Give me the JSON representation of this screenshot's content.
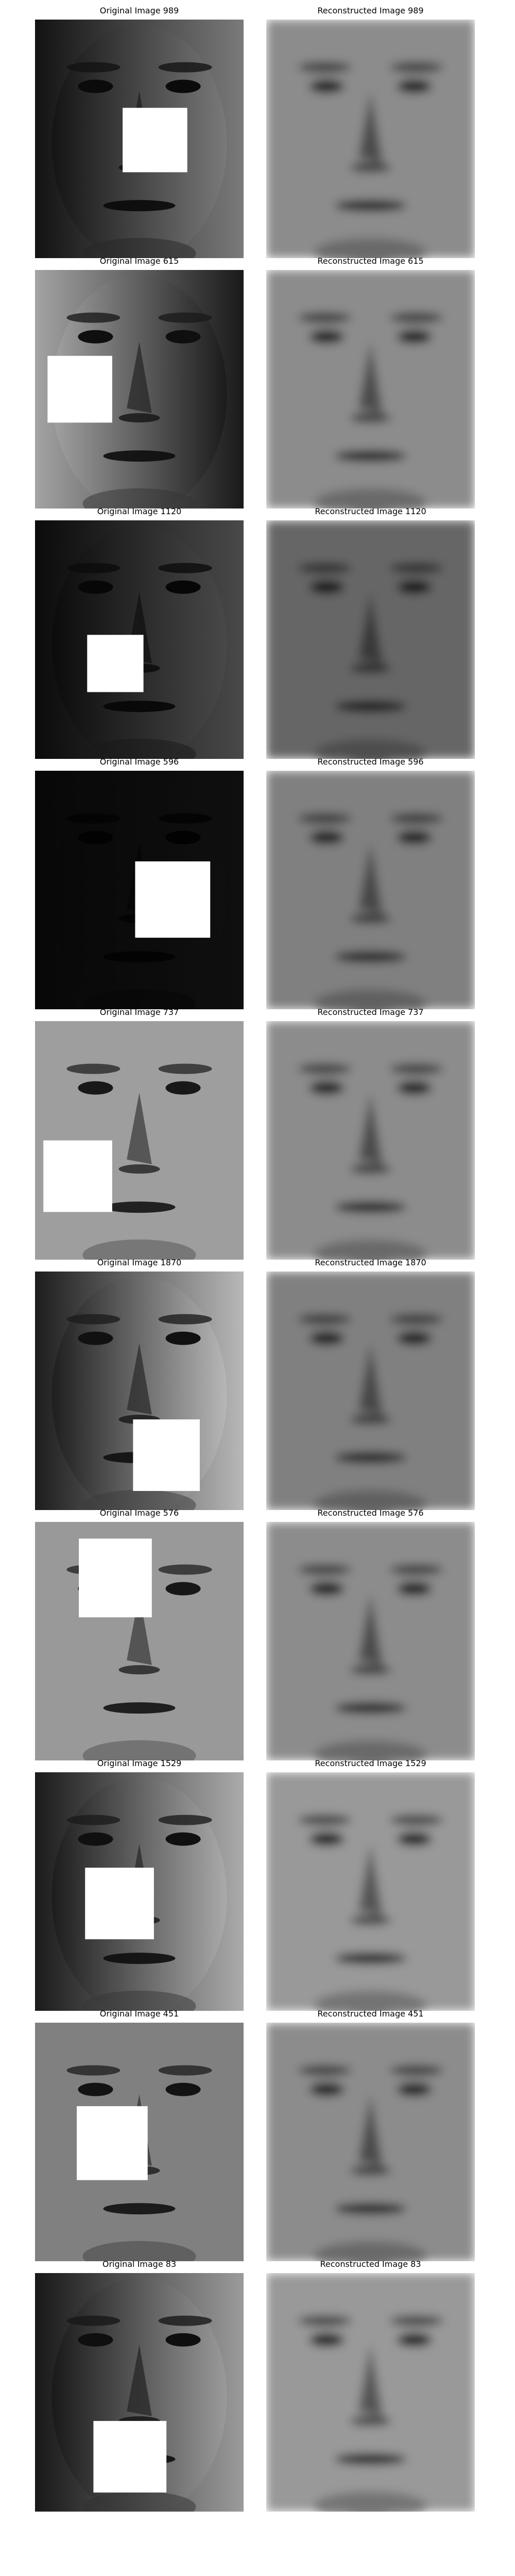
{
  "colors": {
    "background": "#ffffff",
    "occlusion": "#ffffff",
    "caption_text": "#000000"
  },
  "rows": [
    {
      "original_title": "Original Image 989",
      "reconstructed_title": "Reconstructed Image 989",
      "original_subject": "face-photo-989",
      "reconstructed_subject": "face-reconstruction-989",
      "lighting_side": "left-dark",
      "original_brightness": 0.3,
      "reconstructed_brightness": 0.55,
      "occlusion_box_fraction": [
        0.42,
        0.37,
        0.31,
        0.27
      ]
    },
    {
      "original_title": "Original Image 615",
      "reconstructed_title": "Reconstructed Image 615",
      "original_subject": "face-photo-615",
      "reconstructed_subject": "face-reconstruction-615",
      "lighting_side": "right-dark",
      "original_brightness": 0.4,
      "reconstructed_brightness": 0.55,
      "occlusion_box_fraction": [
        0.06,
        0.36,
        0.31,
        0.28
      ]
    },
    {
      "original_title": "Original Image 1120",
      "reconstructed_title": "Reconstructed Image 1120",
      "original_subject": "face-photo-1120",
      "reconstructed_subject": "face-reconstruction-1120",
      "lighting_side": "left-dark",
      "original_brightness": 0.18,
      "reconstructed_brightness": 0.4,
      "occlusion_box_fraction": [
        0.25,
        0.48,
        0.27,
        0.24
      ]
    },
    {
      "original_title": "Original Image 596",
      "reconstructed_title": "Reconstructed Image 596",
      "original_subject": "face-photo-596",
      "reconstructed_subject": "face-reconstruction-596",
      "lighting_side": "dark",
      "original_brightness": 0.05,
      "reconstructed_brightness": 0.5,
      "occlusion_box_fraction": [
        0.48,
        0.38,
        0.36,
        0.32
      ]
    },
    {
      "original_title": "Original Image 737",
      "reconstructed_title": "Reconstructed Image 737",
      "original_subject": "face-photo-737",
      "reconstructed_subject": "face-reconstruction-737",
      "lighting_side": "even",
      "original_brightness": 0.62,
      "reconstructed_brightness": 0.55,
      "occlusion_box_fraction": [
        0.04,
        0.5,
        0.33,
        0.3
      ]
    },
    {
      "original_title": "Original Image 1870",
      "reconstructed_title": "Reconstructed Image 1870",
      "original_subject": "face-photo-1870",
      "reconstructed_subject": "face-reconstruction-1870",
      "lighting_side": "left-dark",
      "original_brightness": 0.45,
      "reconstructed_brightness": 0.5,
      "occlusion_box_fraction": [
        0.47,
        0.62,
        0.32,
        0.3
      ]
    },
    {
      "original_title": "Original Image 576",
      "reconstructed_title": "Reconstructed Image 576",
      "original_subject": "face-photo-576",
      "reconstructed_subject": "face-reconstruction-576",
      "lighting_side": "even",
      "original_brightness": 0.6,
      "reconstructed_brightness": 0.55,
      "occlusion_box_fraction": [
        0.21,
        0.07,
        0.35,
        0.33
      ]
    },
    {
      "original_title": "Original Image 1529",
      "reconstructed_title": "Reconstructed Image 1529",
      "original_subject": "face-photo-1529",
      "reconstructed_subject": "face-reconstruction-1529",
      "lighting_side": "left-dark",
      "original_brightness": 0.42,
      "reconstructed_brightness": 0.6,
      "occlusion_box_fraction": [
        0.24,
        0.4,
        0.33,
        0.3
      ]
    },
    {
      "original_title": "Original Image 451",
      "reconstructed_title": "Reconstructed Image 451",
      "original_subject": "face-photo-451",
      "reconstructed_subject": "face-reconstruction-451",
      "lighting_side": "even",
      "original_brightness": 0.5,
      "reconstructed_brightness": 0.55,
      "occlusion_box_fraction": [
        0.2,
        0.35,
        0.34,
        0.31
      ]
    },
    {
      "original_title": "Original Image 83",
      "reconstructed_title": "Reconstructed Image 83",
      "original_subject": "face-photo-83",
      "reconstructed_subject": "face-reconstruction-83",
      "lighting_side": "left-dark",
      "original_brightness": 0.38,
      "reconstructed_brightness": 0.6,
      "occlusion_box_fraction": [
        0.28,
        0.62,
        0.35,
        0.3
      ]
    }
  ]
}
